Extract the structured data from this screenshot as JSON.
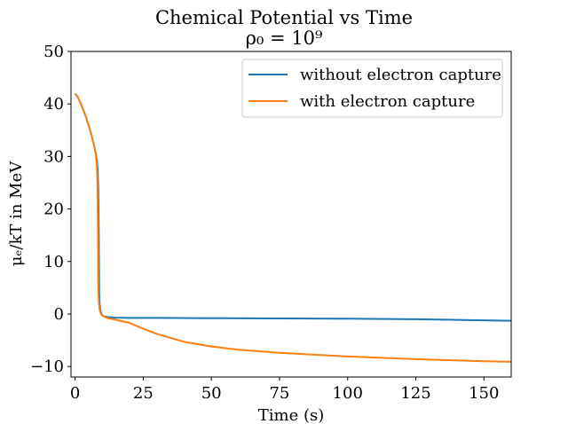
{
  "chart_data": {
    "type": "line",
    "title": "Chemical Potential vs Time",
    "subtitle": "ρ₀ = 10⁹",
    "xlabel": "Time (s)",
    "ylabel": "μₑ/kT in MeV",
    "xlim": [
      -1.5,
      160
    ],
    "ylim": [
      -12,
      50
    ],
    "xticks": [
      0,
      25,
      50,
      75,
      100,
      125,
      150
    ],
    "xtick_labels": [
      "0",
      "25",
      "50",
      "75",
      "100",
      "125",
      "150"
    ],
    "yticks": [
      -10,
      0,
      10,
      20,
      30,
      40,
      50
    ],
    "ytick_labels": [
      "−10",
      "0",
      "10",
      "20",
      "30",
      "40",
      "50"
    ],
    "grid": false,
    "legend_position": "upper-right",
    "series": [
      {
        "name": "without electron capture",
        "color": "#1f77b4",
        "x": [
          0,
          1,
          2,
          3,
          4,
          5,
          6,
          7,
          7.6,
          8,
          8.3,
          8.5,
          8.7,
          8.8,
          8.85,
          8.9,
          8.95,
          9.0,
          9.05,
          9.1,
          9.3,
          9.6,
          10,
          11,
          12,
          15,
          20,
          30,
          50,
          75,
          100,
          125,
          150,
          160
        ],
        "y": [
          42,
          41.3,
          40.2,
          38.9,
          37.5,
          35.9,
          34.1,
          32.0,
          30.6,
          29.3,
          27.5,
          24,
          15,
          8,
          4,
          3.6,
          2.6,
          2.2,
          1.8,
          1.5,
          0.6,
          0.1,
          -0.3,
          -0.5,
          -0.6,
          -0.7,
          -0.75,
          -0.75,
          -0.8,
          -0.85,
          -0.9,
          -1.0,
          -1.2,
          -1.3
        ]
      },
      {
        "name": "with electron capture",
        "color": "#ff7f0e",
        "x": [
          0,
          1,
          2,
          3,
          4,
          5,
          6,
          7,
          7.6,
          8,
          8.2,
          8.4,
          8.5,
          8.6,
          8.7,
          8.8,
          8.9,
          9.0,
          9.2,
          9.5,
          10,
          11,
          12,
          15,
          20,
          25,
          30,
          40,
          50,
          60,
          75,
          100,
          125,
          150,
          160
        ],
        "y": [
          42,
          41.3,
          40.2,
          38.9,
          37.5,
          35.9,
          34.1,
          32.0,
          30.6,
          28,
          25,
          15,
          5,
          3.5,
          2.5,
          1.8,
          1.3,
          0.9,
          0.4,
          0,
          -0.3,
          -0.6,
          -0.8,
          -1.1,
          -1.7,
          -2.8,
          -3.8,
          -5.3,
          -6.2,
          -6.8,
          -7.4,
          -8.1,
          -8.6,
          -9.0,
          -9.1
        ]
      }
    ]
  }
}
